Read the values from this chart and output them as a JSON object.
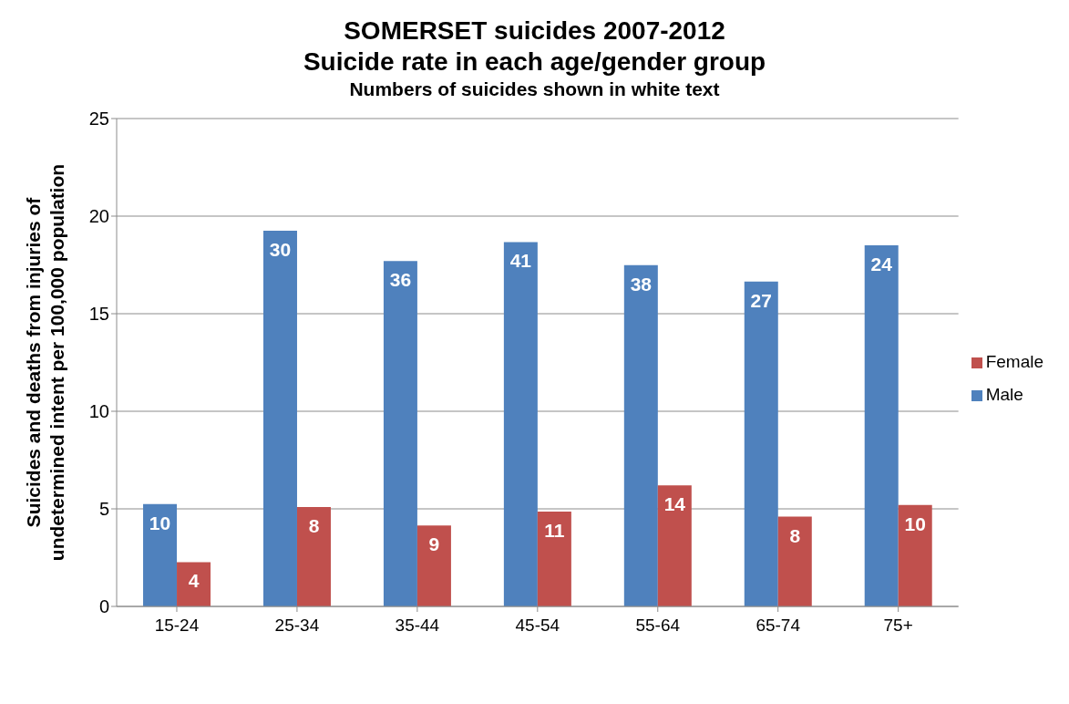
{
  "chart_data": {
    "type": "bar",
    "title": "SOMERSET suicides 2007-2012",
    "subtitle": [
      "Suicide rate in each age/gender group",
      "Numbers of suicides shown in white text"
    ],
    "ylabel": "Suicides and deaths from injuries of undetermined intent per 100,000 population",
    "categories": [
      "15-24",
      "25-34",
      "35-44",
      "45-54",
      "55-64",
      "65-74",
      "75+"
    ],
    "series": [
      {
        "name": "Male",
        "color": "#4f81bd",
        "values": [
          5.25,
          19.25,
          17.7,
          18.67,
          17.49,
          16.65,
          18.5
        ]
      },
      {
        "name": "Female",
        "color": "#c0504d",
        "values": [
          2.27,
          5.09,
          4.15,
          4.86,
          6.2,
          4.6,
          5.2
        ]
      }
    ],
    "annotations": [
      {
        "text": "10",
        "x": "15-24",
        "y": 5.25
      },
      {
        "text": "30",
        "x": "25-34",
        "y": 19.25
      },
      {
        "text": "36",
        "x": "35-44",
        "y": 17.7
      },
      {
        "text": "41",
        "x": "45-54",
        "y": 18.67
      },
      {
        "text": "38",
        "x": "55-64",
        "y": 17.49
      },
      {
        "text": "27",
        "x": "65-74",
        "y": 16.65
      },
      {
        "text": "24",
        "x": "75+",
        "y": 18.5
      },
      {
        "text": "4",
        "x": "15-24",
        "y": 2.27
      },
      {
        "text": "8",
        "x": "25-34",
        "y": 5.09
      },
      {
        "text": "9",
        "x": "35-44",
        "y": 4.15
      },
      {
        "text": "11",
        "x": "45-54",
        "y": 4.86
      },
      {
        "text": "14",
        "x": "55-64",
        "y": 6.2
      },
      {
        "text": "8",
        "x": "65-74",
        "y": 4.6
      },
      {
        "text": "10",
        "x": "75+",
        "y": 5.2
      }
    ],
    "ylim": [
      0,
      25
    ],
    "yticks": [
      0,
      5,
      10,
      15,
      20,
      25
    ],
    "grid": "y",
    "legend": "right"
  }
}
